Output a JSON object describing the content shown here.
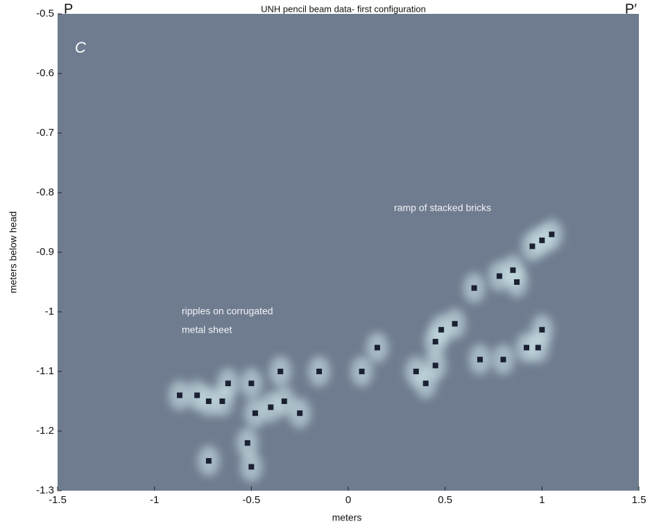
{
  "chart_data": {
    "type": "scatter",
    "title": "UNH pencil beam data- first configuration",
    "left_label": "P",
    "right_label": "P′",
    "panel_label": "C",
    "annotations": [
      [
        "ramp of stacked bricks"
      ],
      [
        "ripples on corrugated",
        "metal sheet"
      ]
    ],
    "x_label": "meters",
    "y_label": "meters below head",
    "xlim": [
      -1.5,
      1.5
    ],
    "ylim": [
      -1.3,
      -0.5
    ],
    "xticks": [
      -1.5,
      -1,
      -0.5,
      0,
      0.5,
      1,
      1.5
    ],
    "yticks": [
      -0.5,
      -0.6,
      -0.7,
      -0.8,
      -0.9,
      -1,
      -1.1,
      -1.2,
      -1.3
    ],
    "background": "#6f7c90",
    "color": "#1b2133",
    "glow_color": "#d4ecef",
    "x": [
      1.0,
      0.95,
      1.05,
      0.85,
      0.87,
      0.78,
      0.65,
      1.0,
      0.98,
      0.92,
      0.8,
      0.68,
      0.48,
      0.55,
      0.45,
      0.35,
      0.45,
      0.4,
      0.15,
      0.07,
      -0.15,
      -0.35,
      -0.33,
      -0.5,
      -0.48,
      -0.52,
      -0.5,
      -0.62,
      -0.65,
      -0.72,
      -0.78,
      -0.87,
      -0.72,
      -0.25,
      -0.4
    ],
    "y": [
      -0.88,
      -0.89,
      -0.87,
      -0.93,
      -0.95,
      -0.94,
      -0.96,
      -1.03,
      -1.06,
      -1.06,
      -1.08,
      -1.08,
      -1.03,
      -1.02,
      -1.05,
      -1.1,
      -1.09,
      -1.12,
      -1.06,
      -1.1,
      -1.1,
      -1.1,
      -1.15,
      -1.12,
      -1.17,
      -1.22,
      -1.26,
      -1.12,
      -1.15,
      -1.15,
      -1.14,
      -1.14,
      -1.25,
      -1.17,
      -1.16
    ]
  }
}
